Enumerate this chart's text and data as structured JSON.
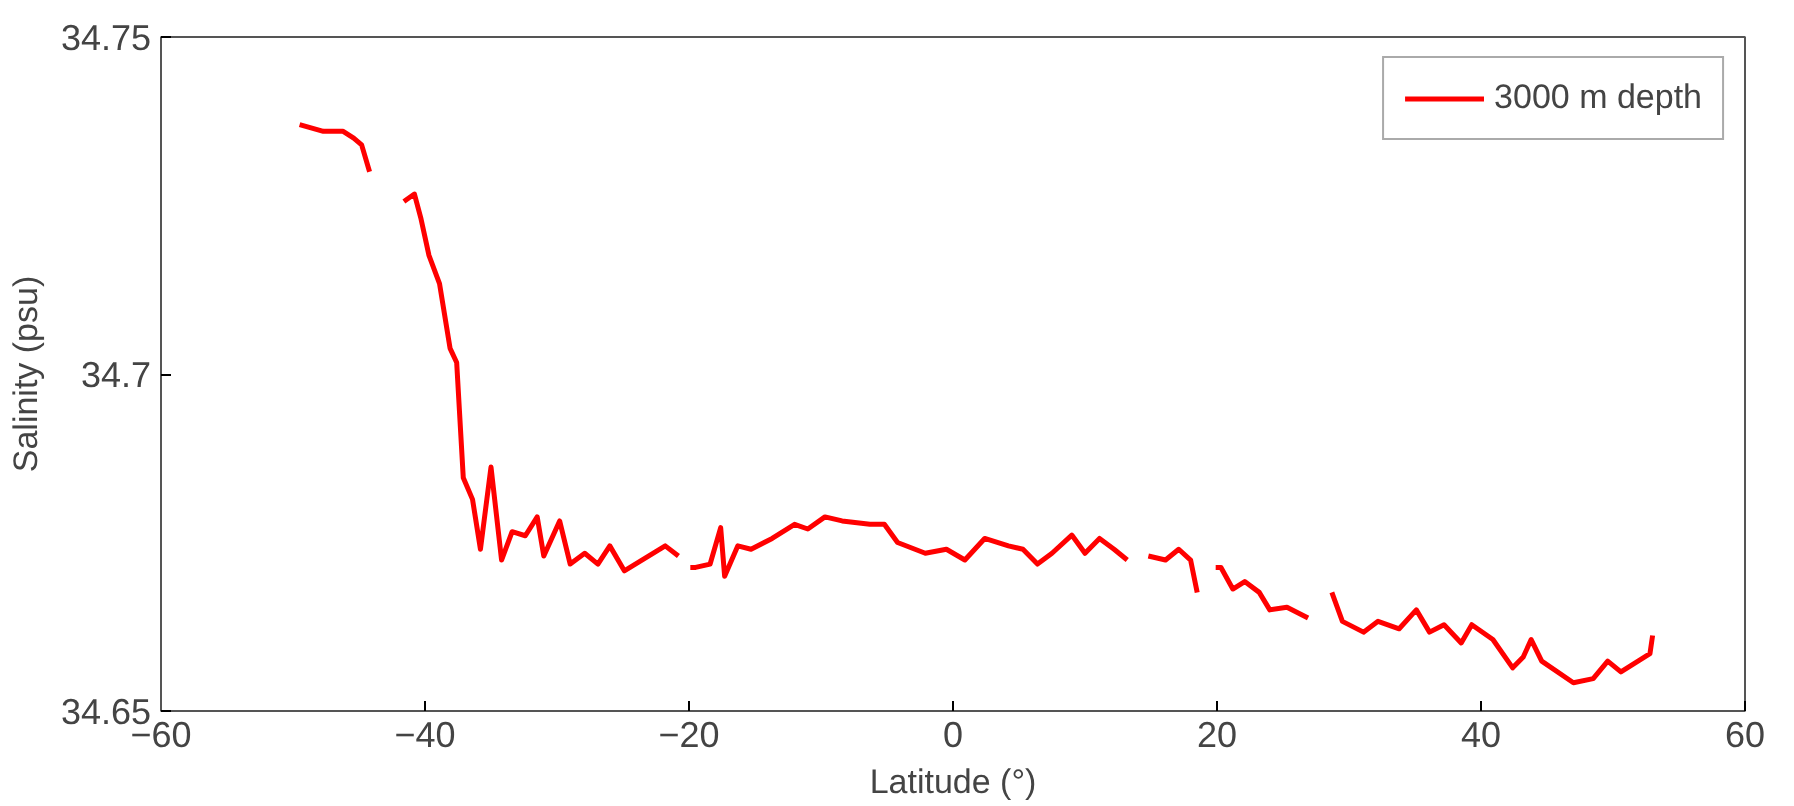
{
  "chart_data": {
    "type": "line",
    "xlabel": "Latitude (°)",
    "ylabel": "Salinity (psu)",
    "xlim": [
      -60,
      60
    ],
    "xticks": [
      -60,
      -40,
      -20,
      0,
      20,
      40,
      60
    ],
    "ylim": [
      34.65,
      34.75
    ],
    "yticks": [
      34.65,
      34.7,
      34.75
    ],
    "grid": false,
    "legend": "top right",
    "marker": "none",
    "line_style": "solid",
    "x": [
      -49.5,
      -47.7,
      -46.2,
      -45.4,
      -44.8,
      -44.2,
      -43.0,
      -41.6,
      -40.8,
      -40.3,
      -39.7,
      -38.9,
      -38.1,
      -37.6,
      -37.1,
      -36.4,
      -35.8,
      -35.0,
      -34.2,
      -33.4,
      -32.4,
      -31.5,
      -31.0,
      -29.8,
      -29.0,
      -27.9,
      -26.9,
      -26.0,
      -24.9,
      -21.8,
      -20.8,
      -20.2,
      -19.9,
      -19.5,
      -18.4,
      -17.6,
      -17.3,
      -16.3,
      -15.3,
      -13.7,
      -12.0,
      -11.0,
      -9.7,
      -8.4,
      -6.3,
      -5.2,
      -4.2,
      -2.1,
      -0.5,
      0.9,
      2.4,
      4.2,
      5.3,
      6.4,
      7.5,
      9.0,
      10.0,
      11.1,
      12.2,
      13.2,
      14.0,
      14.8,
      16.1,
      17.1,
      18.0,
      18.5,
      19.2,
      19.9,
      20.3,
      21.2,
      22.1,
      23.2,
      24.0,
      25.3,
      26.9,
      27.8,
      28.7,
      29.5,
      31.1,
      32.2,
      33.8,
      35.1,
      36.1,
      37.2,
      38.5,
      39.3,
      40.9,
      42.4,
      43.2,
      43.8,
      44.6,
      47.0,
      48.5,
      49.6,
      50.6,
      52.8,
      53.0
    ],
    "series": [
      {
        "name": "3000 m depth",
        "color": "#ff0000",
        "values": [
          34.737,
          34.736,
          34.736,
          34.735,
          34.734,
          34.73,
          null,
          34.7256,
          34.7267,
          34.723,
          34.7176,
          34.7134,
          34.7038,
          34.7017,
          34.6846,
          34.6814,
          34.674,
          34.6862,
          34.6724,
          34.6766,
          34.676,
          34.6788,
          34.673,
          34.6782,
          34.6718,
          34.6734,
          34.6718,
          34.6745,
          34.6708,
          34.6745,
          34.673,
          null,
          34.6713,
          34.6713,
          34.6718,
          34.6772,
          34.67,
          34.6745,
          34.674,
          34.6756,
          34.6777,
          34.677,
          34.6788,
          34.6782,
          34.6777,
          34.6777,
          34.675,
          34.6734,
          34.674,
          34.6724,
          34.6756,
          34.6745,
          34.674,
          34.6718,
          34.6734,
          34.6761,
          34.6734,
          34.6756,
          34.674,
          34.6724,
          null,
          34.673,
          34.6724,
          34.674,
          34.6724,
          34.6676,
          null,
          34.6713,
          34.6713,
          34.6681,
          34.6692,
          34.6676,
          34.665,
          34.6654,
          34.6638,
          null,
          34.6676,
          34.6633,
          34.6617,
          34.6633,
          34.6622,
          34.665,
          34.6617,
          34.6628,
          34.6601,
          34.6628,
          34.6606,
          34.6564,
          34.658,
          34.6606,
          34.6574,
          34.6542,
          34.6548,
          34.6574,
          34.6558,
          34.6585,
          34.6612
        ]
      }
    ]
  }
}
